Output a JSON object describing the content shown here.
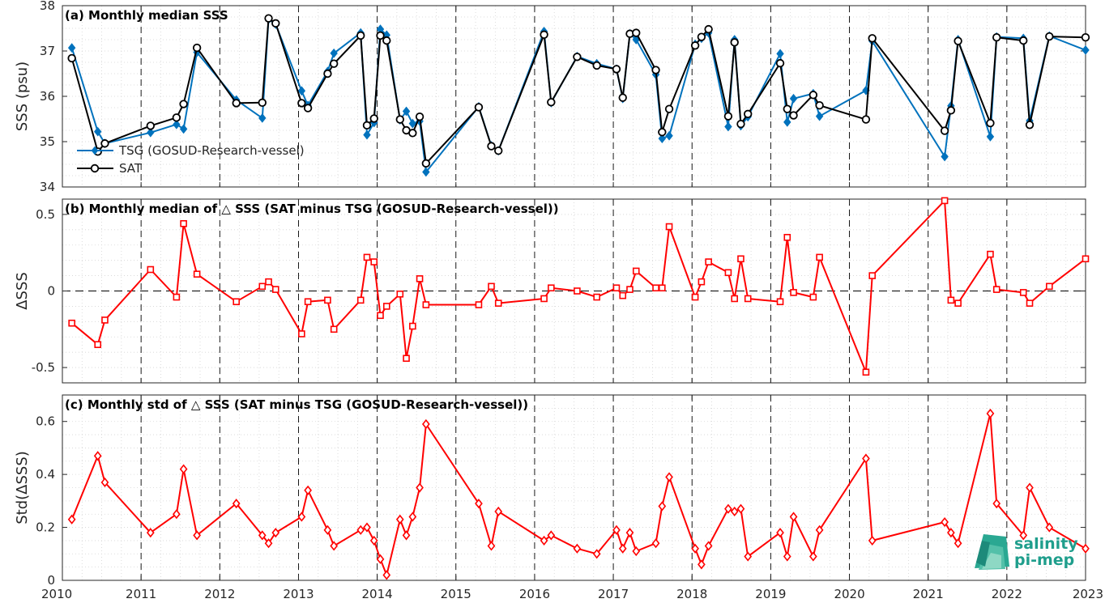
{
  "chart_data": [
    {
      "id": "a",
      "type": "line",
      "title": "(a) Monthly median SSS",
      "ylabel": "SSS (psu)",
      "xlim": [
        2010,
        2023
      ],
      "ylim": [
        34,
        38
      ],
      "yticks": [
        34,
        35,
        36,
        37,
        38
      ],
      "ytick_labels": [
        "34",
        "35",
        "36",
        "37",
        "38"
      ],
      "grid": true,
      "legend_position": "middle-left",
      "series": [
        {
          "name": "TSG (GOSUD-Research-vessel)",
          "color": "#0072BD",
          "marker": "diamond",
          "x": [
            2010.12,
            2010.45,
            2010.54,
            2011.12,
            2011.45,
            2011.54,
            2011.71,
            2012.21,
            2012.54,
            2012.62,
            2012.71,
            2013.04,
            2013.12,
            2013.37,
            2013.45,
            2013.79,
            2013.87,
            2013.96,
            2014.04,
            2014.12,
            2014.29,
            2014.37,
            2014.45,
            2014.54,
            2014.62,
            2015.29,
            2015.45,
            2015.54,
            2016.12,
            2016.21,
            2016.54,
            2016.79,
            2017.04,
            2017.12,
            2017.21,
            2017.29,
            2017.54,
            2017.62,
            2017.71,
            2018.04,
            2018.12,
            2018.21,
            2018.46,
            2018.54,
            2018.62,
            2018.71,
            2019.12,
            2019.21,
            2019.29,
            2019.54,
            2019.62,
            2020.21,
            2020.29,
            2021.21,
            2021.29,
            2021.38,
            2021.79,
            2021.87,
            2022.21,
            2022.29,
            2022.54,
            2023.0
          ],
          "y": [
            37.07,
            35.22,
            34.96,
            35.2,
            35.38,
            35.28,
            36.97,
            35.92,
            35.52,
            37.7,
            37.59,
            36.12,
            35.8,
            36.55,
            36.95,
            37.4,
            35.15,
            35.42,
            37.48,
            37.35,
            35.48,
            35.67,
            35.4,
            35.45,
            34.33,
            35.77,
            34.91,
            34.8,
            37.43,
            35.86,
            36.88,
            36.72,
            36.6,
            35.95,
            37.38,
            37.25,
            36.48,
            35.07,
            35.13,
            37.15,
            37.28,
            37.4,
            35.33,
            37.25,
            35.35,
            35.55,
            36.94,
            35.43,
            35.95,
            36.06,
            35.56,
            36.13,
            37.22,
            34.67,
            35.79,
            37.25,
            35.11,
            37.31,
            37.28,
            35.46,
            37.33,
            37.02
          ]
        },
        {
          "name": "SAT",
          "color": "#000000",
          "marker": "circle",
          "x": [
            2010.12,
            2010.45,
            2010.54,
            2011.12,
            2011.45,
            2011.54,
            2011.71,
            2012.21,
            2012.54,
            2012.62,
            2012.71,
            2013.04,
            2013.12,
            2013.37,
            2013.45,
            2013.79,
            2013.87,
            2013.96,
            2014.04,
            2014.12,
            2014.29,
            2014.37,
            2014.45,
            2014.54,
            2014.62,
            2015.29,
            2015.45,
            2015.54,
            2016.12,
            2016.21,
            2016.54,
            2016.79,
            2017.04,
            2017.12,
            2017.21,
            2017.29,
            2017.54,
            2017.62,
            2017.71,
            2018.04,
            2018.12,
            2018.21,
            2018.46,
            2018.54,
            2018.62,
            2018.71,
            2019.12,
            2019.21,
            2019.29,
            2019.54,
            2019.62,
            2020.21,
            2020.29,
            2021.21,
            2021.29,
            2021.38,
            2021.79,
            2021.87,
            2022.21,
            2022.29,
            2022.54,
            2023.0
          ],
          "y": [
            36.84,
            34.78,
            34.96,
            35.35,
            35.53,
            35.83,
            37.07,
            35.85,
            35.86,
            37.72,
            37.61,
            35.85,
            35.74,
            36.5,
            36.72,
            37.34,
            35.36,
            35.51,
            37.34,
            37.23,
            35.49,
            35.25,
            35.19,
            35.55,
            34.52,
            35.76,
            34.9,
            34.8,
            37.36,
            35.87,
            36.87,
            36.68,
            36.6,
            35.97,
            37.38,
            37.4,
            36.58,
            35.21,
            35.72,
            37.12,
            37.31,
            37.48,
            35.56,
            37.19,
            35.39,
            35.61,
            36.73,
            35.72,
            35.58,
            36.03,
            35.8,
            35.49,
            37.28,
            35.24,
            35.69,
            37.22,
            35.41,
            37.3,
            37.23,
            35.37,
            37.32,
            37.3
          ]
        }
      ]
    },
    {
      "id": "b",
      "type": "line",
      "title": "(b) Monthly median of △ SSS (SAT minus TSG (GOSUD-Research-vessel))",
      "ylabel": "ΔSSS",
      "xlim": [
        2010,
        2023
      ],
      "ylim": [
        -0.6,
        0.6
      ],
      "yticks": [
        -0.5,
        0,
        0.5
      ],
      "ytick_labels": [
        "-0.5",
        "0",
        "0.5"
      ],
      "grid": true,
      "zero_line": true,
      "series": [
        {
          "color": "#FF0000",
          "marker": "square",
          "x": [
            2010.12,
            2010.45,
            2010.54,
            2011.12,
            2011.45,
            2011.54,
            2011.71,
            2012.21,
            2012.54,
            2012.62,
            2012.71,
            2013.04,
            2013.12,
            2013.37,
            2013.45,
            2013.79,
            2013.87,
            2013.96,
            2014.04,
            2014.12,
            2014.29,
            2014.37,
            2014.45,
            2014.54,
            2014.62,
            2015.29,
            2015.45,
            2015.54,
            2016.12,
            2016.21,
            2016.54,
            2016.79,
            2017.04,
            2017.12,
            2017.21,
            2017.29,
            2017.54,
            2017.62,
            2017.71,
            2018.04,
            2018.12,
            2018.21,
            2018.46,
            2018.54,
            2018.62,
            2018.71,
            2019.12,
            2019.21,
            2019.29,
            2019.54,
            2019.62,
            2020.21,
            2020.29,
            2021.21,
            2021.29,
            2021.38,
            2021.79,
            2021.87,
            2022.21,
            2022.29,
            2022.54,
            2023.0
          ],
          "y": [
            -0.21,
            -0.35,
            -0.19,
            0.14,
            -0.04,
            0.44,
            0.11,
            -0.07,
            0.03,
            0.06,
            0.01,
            -0.28,
            -0.07,
            -0.06,
            -0.25,
            -0.06,
            0.22,
            0.19,
            -0.16,
            -0.1,
            -0.02,
            -0.44,
            -0.23,
            0.08,
            -0.09,
            -0.09,
            0.03,
            -0.08,
            -0.05,
            0.02,
            0.0,
            -0.04,
            0.02,
            -0.03,
            0.01,
            0.13,
            0.02,
            0.02,
            0.42,
            -0.04,
            0.06,
            0.19,
            0.12,
            -0.05,
            0.21,
            -0.05,
            -0.07,
            0.35,
            -0.01,
            -0.04,
            0.22,
            -0.53,
            0.1,
            0.59,
            -0.06,
            -0.08,
            0.24,
            0.01,
            -0.01,
            -0.08,
            0.03,
            0.21
          ]
        }
      ]
    },
    {
      "id": "c",
      "type": "line",
      "title": "(c) Monthly std of △ SSS (SAT minus TSG (GOSUD-Research-vessel))",
      "ylabel": "Std(ΔSSS)",
      "xlim": [
        2010,
        2023
      ],
      "ylim": [
        0,
        0.7
      ],
      "yticks": [
        0,
        0.2,
        0.4,
        0.6
      ],
      "ytick_labels": [
        "0",
        "0.2",
        "0.4",
        "0.6"
      ],
      "xticks": [
        2010,
        2011,
        2012,
        2013,
        2014,
        2015,
        2016,
        2017,
        2018,
        2019,
        2020,
        2021,
        2022,
        2023
      ],
      "xtick_labels": [
        "2010",
        "2011",
        "2012",
        "2013",
        "2014",
        "2015",
        "2016",
        "2017",
        "2018",
        "2019",
        "2020",
        "2021",
        "2022",
        "2023"
      ],
      "grid": true,
      "series": [
        {
          "color": "#FF0000",
          "marker": "diamond",
          "x": [
            2010.12,
            2010.45,
            2010.54,
            2011.12,
            2011.45,
            2011.54,
            2011.71,
            2012.21,
            2012.54,
            2012.62,
            2012.71,
            2013.04,
            2013.12,
            2013.37,
            2013.45,
            2013.79,
            2013.87,
            2013.96,
            2014.04,
            2014.12,
            2014.29,
            2014.37,
            2014.45,
            2014.54,
            2014.62,
            2015.29,
            2015.45,
            2015.54,
            2016.12,
            2016.21,
            2016.54,
            2016.79,
            2017.04,
            2017.12,
            2017.21,
            2017.29,
            2017.54,
            2017.62,
            2017.71,
            2018.04,
            2018.12,
            2018.21,
            2018.46,
            2018.54,
            2018.62,
            2018.71,
            2019.12,
            2019.21,
            2019.29,
            2019.54,
            2019.62,
            2020.21,
            2020.29,
            2021.21,
            2021.29,
            2021.38,
            2021.79,
            2021.87,
            2022.21,
            2022.29,
            2022.54,
            2023.0
          ],
          "y": [
            0.23,
            0.47,
            0.37,
            0.18,
            0.25,
            0.42,
            0.17,
            0.29,
            0.17,
            0.14,
            0.18,
            0.24,
            0.34,
            0.19,
            0.13,
            0.19,
            0.2,
            0.15,
            0.08,
            0.02,
            0.23,
            0.17,
            0.24,
            0.35,
            0.59,
            0.29,
            0.13,
            0.26,
            0.15,
            0.17,
            0.12,
            0.1,
            0.19,
            0.12,
            0.18,
            0.11,
            0.14,
            0.28,
            0.39,
            0.12,
            0.06,
            0.13,
            0.27,
            0.26,
            0.27,
            0.09,
            0.18,
            0.09,
            0.24,
            0.09,
            0.19,
            0.46,
            0.15,
            0.22,
            0.18,
            0.14,
            0.63,
            0.29,
            0.17,
            0.35,
            0.2,
            0.12
          ]
        }
      ]
    }
  ],
  "logo": {
    "line1": "salinity",
    "line2": "pi-mep",
    "color": "#1f9e8c"
  }
}
